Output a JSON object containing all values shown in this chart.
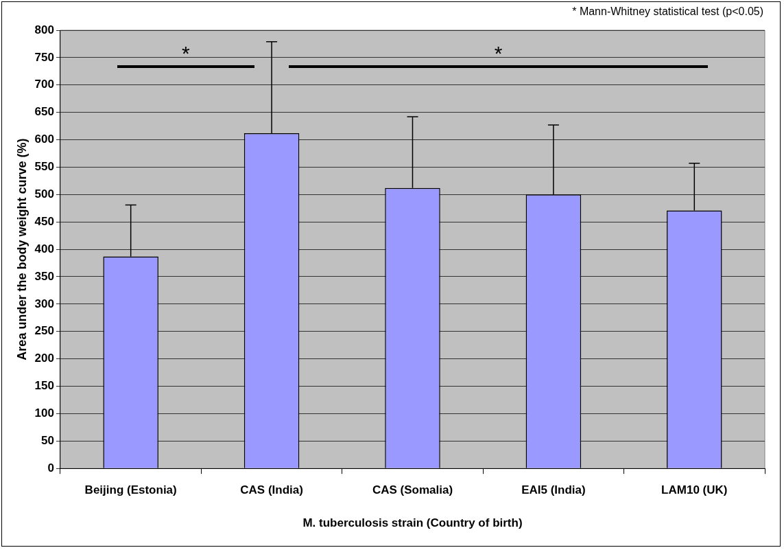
{
  "chart_data": {
    "type": "bar",
    "xlabel": "M. tuberculosis strain (Country of birth)",
    "ylabel": "Area under the body weight curve (%)",
    "categories": [
      "Beijing (Estonia)",
      "CAS (India)",
      "CAS (Somalia)",
      "EAI5 (India)",
      "LAM10 (UK)"
    ],
    "values": [
      387,
      612,
      512,
      500,
      471
    ],
    "errors": [
      [
        387,
        481
      ],
      [
        612,
        779
      ],
      [
        512,
        642
      ],
      [
        500,
        627
      ],
      [
        471,
        557
      ]
    ],
    "color": "#9999ff",
    "ylim": [
      0,
      800
    ],
    "yticks": [
      0,
      50,
      100,
      150,
      200,
      250,
      300,
      350,
      400,
      450,
      500,
      550,
      600,
      650,
      700,
      750,
      800
    ],
    "grid": "y",
    "legend": false,
    "annotations": [
      "* Mann-Whitney statistical test (p<0.05)",
      "*",
      "*"
    ]
  }
}
